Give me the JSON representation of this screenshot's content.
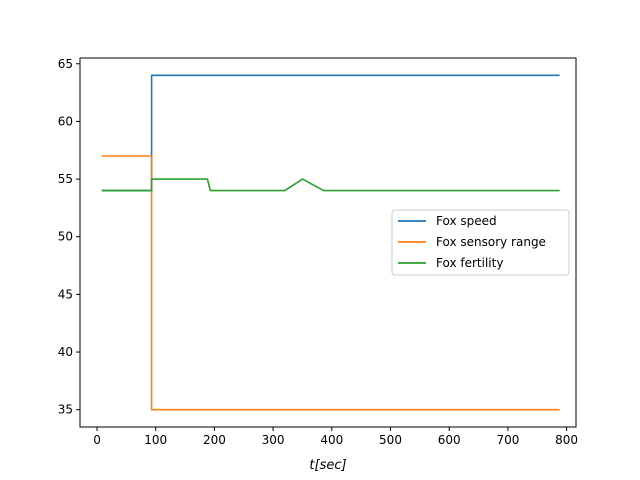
{
  "chart_data": {
    "type": "line",
    "title": "",
    "xlabel": "t[sec]",
    "ylabel": "",
    "xlim": [
      -29,
      816
    ],
    "ylim": [
      33.5,
      65.5
    ],
    "xticks": [
      0,
      100,
      200,
      300,
      400,
      500,
      600,
      700,
      800
    ],
    "yticks": [
      35,
      40,
      45,
      50,
      55,
      60,
      65
    ],
    "grid": false,
    "legend": "center-right",
    "series": [
      {
        "name": "Fox speed",
        "color": "#1f77b4",
        "points": [
          [
            8,
            54
          ],
          [
            93,
            54
          ],
          [
            93,
            64
          ],
          [
            788,
            64
          ]
        ]
      },
      {
        "name": "Fox sensory range",
        "color": "#ff7f0e",
        "points": [
          [
            8,
            57
          ],
          [
            93,
            57
          ],
          [
            93,
            35
          ],
          [
            788,
            35
          ]
        ]
      },
      {
        "name": "Fox fertility",
        "color": "#2ca02c",
        "points": [
          [
            8,
            54
          ],
          [
            93,
            54
          ],
          [
            93,
            55
          ],
          [
            188,
            55
          ],
          [
            193,
            54
          ],
          [
            320,
            54
          ],
          [
            350,
            55
          ],
          [
            386,
            54
          ],
          [
            788,
            54
          ]
        ]
      }
    ]
  }
}
